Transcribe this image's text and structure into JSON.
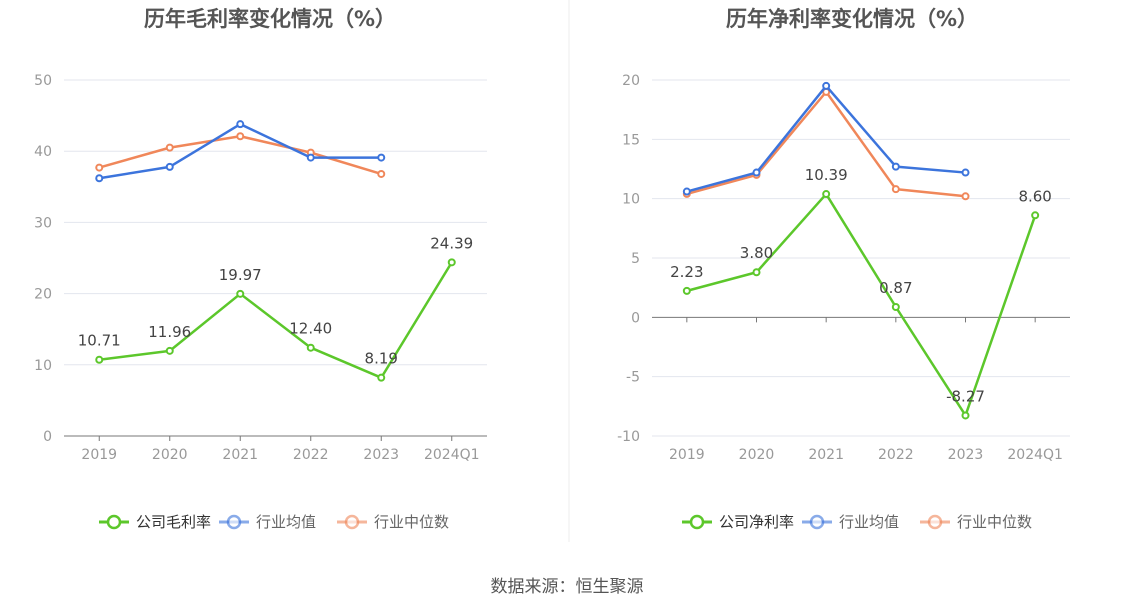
{
  "source_note": "数据来源：恒生聚源",
  "colors": {
    "company": "#5cc72b",
    "avg": "#3c74dc",
    "median": "#f0875a",
    "grid": "#e3e6ee",
    "axis_text": "#999999",
    "label_text": "#444444",
    "title_text": "#555555"
  },
  "chart_data": [
    {
      "type": "line",
      "title": "历年毛利率变化情况（%）",
      "categories": [
        "2019",
        "2020",
        "2021",
        "2022",
        "2023",
        "2024Q1"
      ],
      "ylim": [
        0,
        50
      ],
      "yticks": [
        0,
        10,
        20,
        30,
        40,
        50
      ],
      "ytick_labels": [
        "0",
        "10",
        "20",
        "30",
        "40",
        "50"
      ],
      "grid": true,
      "legend_position": "bottom-center",
      "series": [
        {
          "key": "company",
          "name": "公司毛利率",
          "values": [
            10.71,
            11.96,
            19.97,
            12.4,
            8.19,
            24.39
          ],
          "labels": [
            "10.71",
            "11.96",
            "19.97",
            "12.40",
            "8.19",
            "24.39"
          ]
        },
        {
          "key": "avg",
          "name": "行业均值",
          "values": [
            36.2,
            37.8,
            43.8,
            39.1,
            39.1,
            null
          ]
        },
        {
          "key": "median",
          "name": "行业中位数",
          "values": [
            37.7,
            40.5,
            42.1,
            39.8,
            36.8,
            null
          ]
        }
      ]
    },
    {
      "type": "line",
      "title": "历年净利率变化情况（%）",
      "categories": [
        "2019",
        "2020",
        "2021",
        "2022",
        "2023",
        "2024Q1"
      ],
      "ylim": [
        -10,
        20
      ],
      "yticks": [
        -10,
        -5,
        0,
        5,
        10,
        15,
        20
      ],
      "ytick_labels": [
        "-10",
        "-5",
        "0",
        "5",
        "10",
        "15",
        "20"
      ],
      "grid": true,
      "legend_position": "bottom-center",
      "series": [
        {
          "key": "company",
          "name": "公司净利率",
          "values": [
            2.23,
            3.8,
            10.39,
            0.87,
            -8.27,
            8.6
          ],
          "labels": [
            "2.23",
            "3.80",
            "10.39",
            "0.87",
            "-8.27",
            "8.60"
          ]
        },
        {
          "key": "avg",
          "name": "行业均值",
          "values": [
            10.6,
            12.2,
            19.5,
            12.7,
            12.2,
            null
          ]
        },
        {
          "key": "median",
          "name": "行业中位数",
          "values": [
            10.4,
            12.0,
            19.0,
            10.8,
            10.2,
            null
          ]
        }
      ]
    }
  ]
}
